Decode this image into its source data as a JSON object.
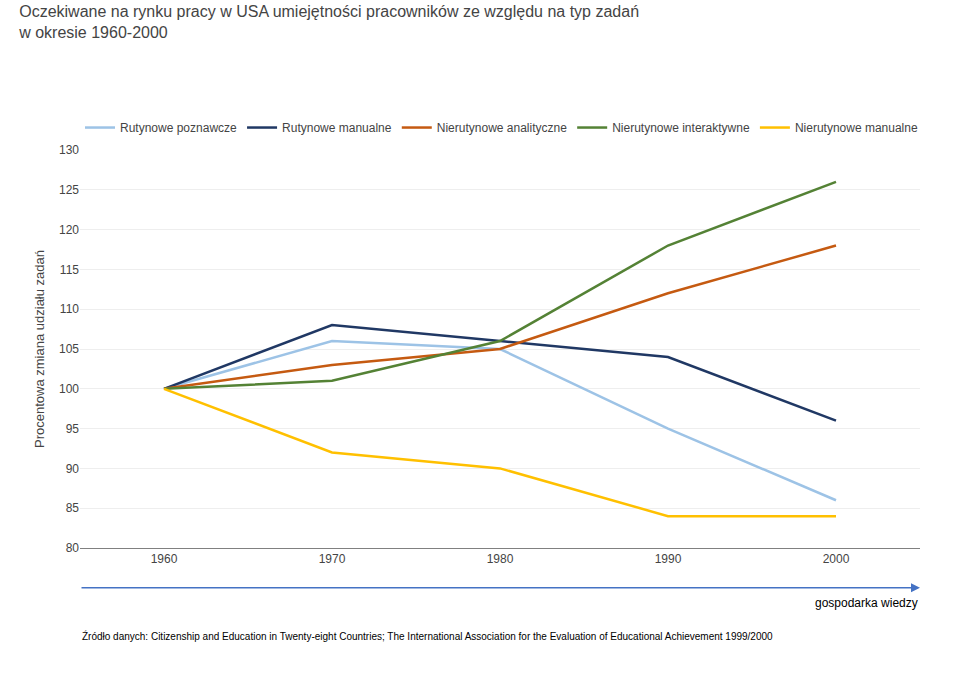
{
  "chart_data": {
    "type": "line",
    "title": "Oczekiwane na rynku pracy w USA umiejętności pracowników ze względu na typ zadań\nw okresie 1960-2000",
    "ylabel": "Procentowa zmiana udziału zadań",
    "x": [
      1960,
      1970,
      1980,
      1990,
      2000
    ],
    "series": [
      {
        "name": "Rutynowe poznawcze",
        "color": "#9DC3E6",
        "values": [
          100,
          106,
          105,
          95,
          86
        ]
      },
      {
        "name": "Rutynowe manualne",
        "color": "#203864",
        "values": [
          100,
          108,
          106,
          104,
          96
        ]
      },
      {
        "name": "Nierutynowe analityczne",
        "color": "#C55A11",
        "values": [
          100,
          103,
          105,
          112,
          118
        ]
      },
      {
        "name": "Nierutynowe interaktywne",
        "color": "#548235",
        "values": [
          100,
          101,
          106,
          118,
          126
        ]
      },
      {
        "name": "Nierutynowe manualne",
        "color": "#FFC000",
        "values": [
          100,
          92,
          90,
          84,
          84
        ]
      }
    ],
    "xlim": [
      1955,
      2005
    ],
    "xticks": [
      1960,
      1970,
      1980,
      1990,
      2000
    ],
    "ylim": [
      80,
      130
    ],
    "yticks": [
      80,
      85,
      90,
      95,
      100,
      105,
      110,
      115,
      120,
      125,
      130
    ],
    "grid": true,
    "legend": "top",
    "annotations": [
      "gospodarka wiedzy",
      "Źródło danych: Citizenship and Education in Twenty-eight Countries; The International Association for the Evaluation of Educational Achievement 1999/2000"
    ]
  }
}
